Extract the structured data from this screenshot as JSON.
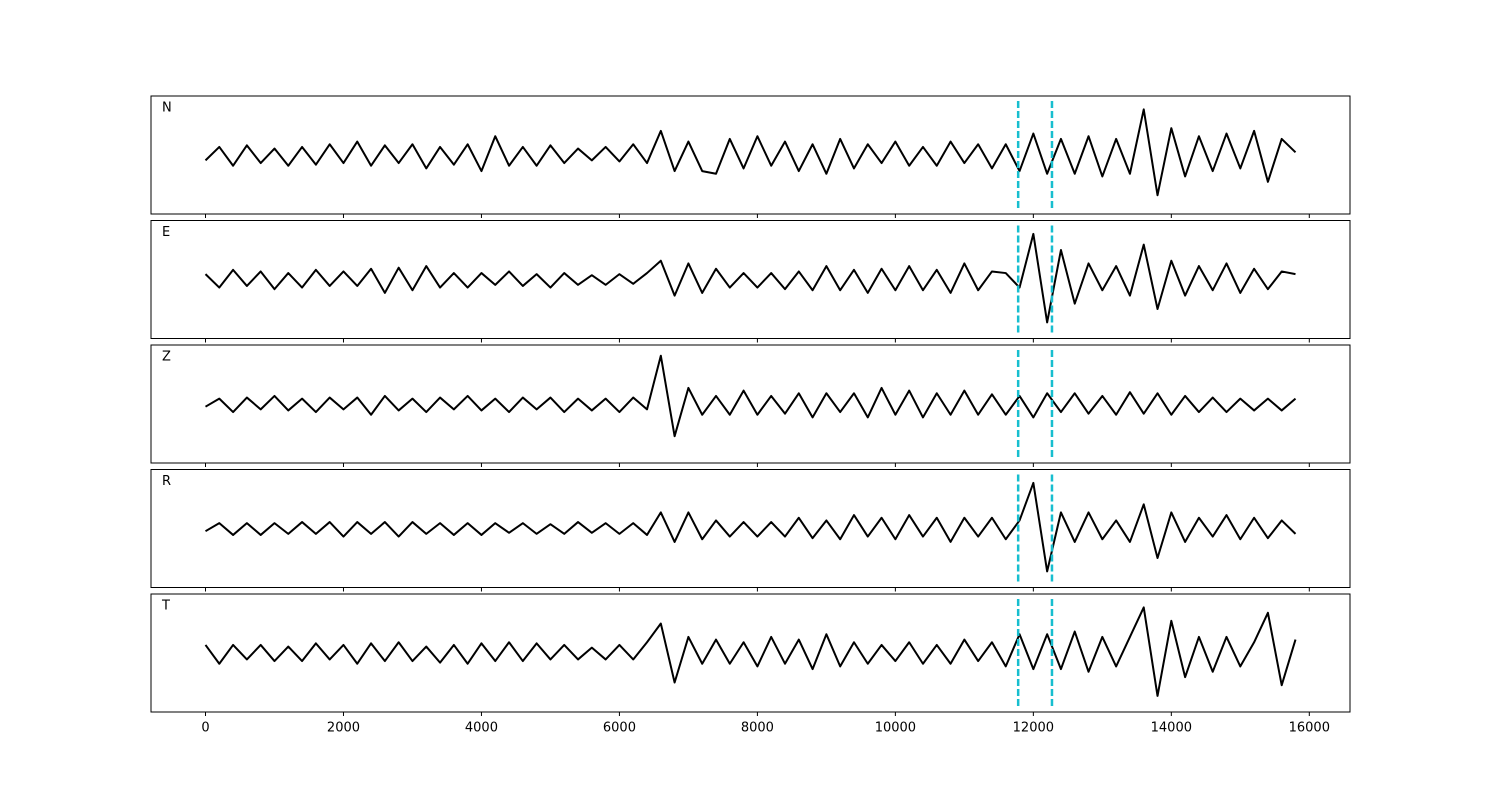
{
  "chart_data": {
    "type": "line",
    "x": [
      0,
      200,
      400,
      600,
      800,
      1000,
      1200,
      1400,
      1600,
      1800,
      2000,
      2200,
      2400,
      2600,
      2800,
      3000,
      3200,
      3400,
      3600,
      3800,
      4000,
      4200,
      4400,
      4600,
      4800,
      5000,
      5200,
      5400,
      5600,
      5800,
      6000,
      6200,
      6400,
      6600,
      6800,
      7000,
      7200,
      7400,
      7600,
      7800,
      8000,
      8200,
      8400,
      8600,
      8800,
      9000,
      9200,
      9400,
      9600,
      9800,
      10000,
      10200,
      10400,
      10600,
      10800,
      11000,
      11200,
      11400,
      11600,
      11800,
      12000,
      12200,
      12400,
      12600,
      12800,
      13000,
      13200,
      13400,
      13600,
      13800,
      14000,
      14200,
      14400,
      14600,
      14800,
      15000,
      15200,
      15400,
      15600,
      15800
    ],
    "series": [
      {
        "name": "N",
        "color": "#000000",
        "values": [
          -0.1,
          0.15,
          -0.2,
          0.18,
          -0.15,
          0.12,
          -0.2,
          0.15,
          -0.18,
          0.2,
          -0.15,
          0.25,
          -0.2,
          0.18,
          -0.15,
          0.2,
          -0.25,
          0.15,
          -0.18,
          0.2,
          -0.3,
          0.35,
          -0.2,
          0.15,
          -0.2,
          0.18,
          -0.15,
          0.12,
          -0.1,
          0.15,
          -0.12,
          0.2,
          -0.15,
          0.45,
          -0.3,
          0.25,
          -0.3,
          -0.35,
          0.3,
          -0.25,
          0.35,
          -0.2,
          0.25,
          -0.3,
          0.2,
          -0.35,
          0.3,
          -0.25,
          0.2,
          -0.15,
          0.25,
          -0.2,
          0.15,
          -0.2,
          0.25,
          -0.15,
          0.2,
          -0.25,
          0.2,
          -0.3,
          0.4,
          -0.35,
          0.3,
          -0.35,
          0.35,
          -0.4,
          0.3,
          -0.35,
          0.85,
          -0.75,
          0.5,
          -0.4,
          0.35,
          -0.3,
          0.4,
          -0.25,
          0.45,
          -0.5,
          0.3,
          0.05
        ]
      },
      {
        "name": "E",
        "color": "#000000",
        "values": [
          0.1,
          -0.15,
          0.18,
          -0.12,
          0.15,
          -0.18,
          0.12,
          -0.15,
          0.18,
          -0.12,
          0.15,
          -0.12,
          0.2,
          -0.25,
          0.22,
          -0.2,
          0.25,
          -0.15,
          0.12,
          -0.15,
          0.12,
          -0.1,
          0.15,
          -0.12,
          0.1,
          -0.15,
          0.12,
          -0.1,
          0.08,
          -0.1,
          0.1,
          -0.08,
          0.12,
          0.35,
          -0.3,
          0.3,
          -0.25,
          0.2,
          -0.15,
          0.12,
          -0.15,
          0.12,
          -0.18,
          0.15,
          -0.2,
          0.25,
          -0.2,
          0.18,
          -0.25,
          0.2,
          -0.2,
          0.25,
          -0.2,
          0.18,
          -0.25,
          0.3,
          -0.2,
          0.15,
          0.12,
          -0.15,
          0.85,
          -0.8,
          0.55,
          -0.45,
          0.3,
          -0.2,
          0.25,
          -0.3,
          0.65,
          -0.55,
          0.35,
          -0.3,
          0.25,
          -0.2,
          0.3,
          -0.25,
          0.2,
          -0.18,
          0.15,
          0.1
        ]
      },
      {
        "name": "Z",
        "color": "#000000",
        "values": [
          -0.05,
          0.1,
          -0.15,
          0.12,
          -0.1,
          0.15,
          -0.12,
          0.1,
          -0.15,
          0.12,
          -0.1,
          0.12,
          -0.2,
          0.15,
          -0.12,
          0.1,
          -0.15,
          0.12,
          -0.1,
          0.15,
          -0.12,
          0.1,
          -0.15,
          0.12,
          -0.1,
          0.12,
          -0.15,
          0.1,
          -0.12,
          0.1,
          -0.15,
          0.12,
          -0.1,
          0.9,
          -0.6,
          0.3,
          -0.2,
          0.15,
          -0.2,
          0.25,
          -0.2,
          0.15,
          -0.18,
          0.2,
          -0.25,
          0.2,
          -0.15,
          0.2,
          -0.25,
          0.3,
          -0.2,
          0.25,
          -0.25,
          0.2,
          -0.2,
          0.25,
          -0.2,
          0.18,
          -0.2,
          0.15,
          -0.25,
          0.2,
          -0.15,
          0.2,
          -0.18,
          0.15,
          -0.2,
          0.22,
          -0.18,
          0.2,
          -0.2,
          0.15,
          -0.15,
          0.12,
          -0.15,
          0.1,
          -0.12,
          0.1,
          -0.12,
          0.1
        ]
      },
      {
        "name": "R",
        "color": "#000000",
        "values": [
          -0.05,
          0.1,
          -0.12,
          0.1,
          -0.12,
          0.1,
          -0.1,
          0.12,
          -0.1,
          0.12,
          -0.15,
          0.12,
          -0.1,
          0.12,
          -0.15,
          0.12,
          -0.1,
          0.1,
          -0.12,
          0.1,
          -0.12,
          0.1,
          -0.08,
          0.1,
          -0.1,
          0.08,
          -0.1,
          0.12,
          -0.08,
          0.1,
          -0.1,
          0.1,
          -0.12,
          0.3,
          -0.25,
          0.3,
          -0.2,
          0.15,
          -0.15,
          0.12,
          -0.15,
          0.12,
          -0.15,
          0.2,
          -0.18,
          0.15,
          -0.2,
          0.25,
          -0.15,
          0.2,
          -0.2,
          0.25,
          -0.15,
          0.2,
          -0.25,
          0.2,
          -0.15,
          0.2,
          -0.2,
          0.15,
          0.85,
          -0.8,
          0.3,
          -0.25,
          0.3,
          -0.2,
          0.15,
          -0.25,
          0.45,
          -0.55,
          0.3,
          -0.25,
          0.2,
          -0.15,
          0.25,
          -0.2,
          0.2,
          -0.18,
          0.15,
          -0.1
        ]
      },
      {
        "name": "T",
        "color": "#000000",
        "values": [
          0.15,
          -0.2,
          0.15,
          -0.12,
          0.15,
          -0.15,
          0.12,
          -0.15,
          0.18,
          -0.12,
          0.15,
          -0.2,
          0.18,
          -0.15,
          0.2,
          -0.15,
          0.12,
          -0.18,
          0.15,
          -0.2,
          0.18,
          -0.15,
          0.2,
          -0.15,
          0.18,
          -0.12,
          0.15,
          -0.12,
          0.1,
          -0.12,
          0.15,
          -0.12,
          0.2,
          0.55,
          -0.55,
          0.3,
          -0.2,
          0.25,
          -0.2,
          0.2,
          -0.25,
          0.3,
          -0.2,
          0.25,
          -0.3,
          0.35,
          -0.25,
          0.2,
          -0.2,
          0.15,
          -0.15,
          0.2,
          -0.2,
          0.15,
          -0.2,
          0.25,
          -0.15,
          0.2,
          -0.25,
          0.35,
          -0.3,
          0.35,
          -0.3,
          0.4,
          -0.35,
          0.3,
          -0.25,
          0.3,
          0.85,
          -0.8,
          0.6,
          -0.45,
          0.3,
          -0.35,
          0.3,
          -0.25,
          0.2,
          0.75,
          -0.6,
          0.25
        ]
      }
    ],
    "xlim": [
      -790,
      16590
    ],
    "xticks": [
      0,
      2000,
      4000,
      6000,
      8000,
      10000,
      12000,
      14000,
      16000
    ],
    "ylim": [
      -1.1,
      1.1
    ],
    "vlines": [
      11780,
      12270
    ],
    "vline_color": "#17becf"
  }
}
